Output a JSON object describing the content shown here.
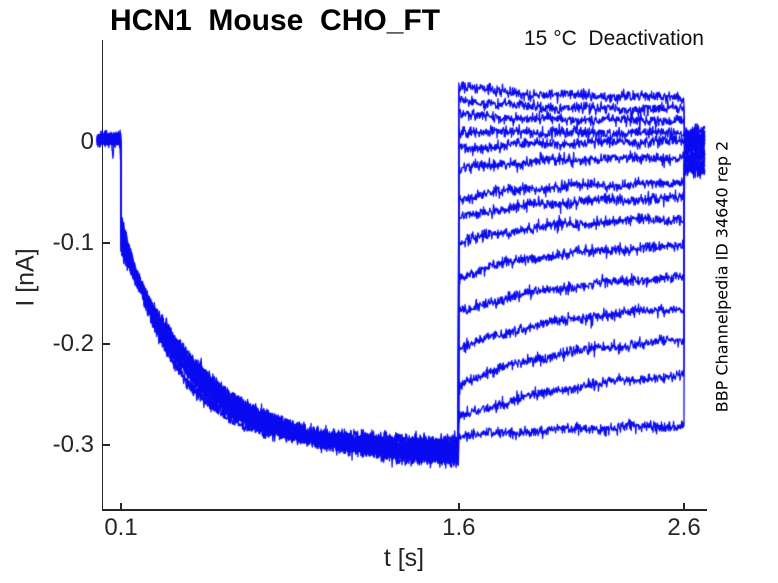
{
  "header": {
    "title": "HCN1  Mouse  CHO_FT",
    "subtitle": "15 °C  Deactivation",
    "watermark": "BBP Channelpedia ID 34640 rep 2"
  },
  "chart_data": {
    "type": "line",
    "title": "HCN1  Mouse  CHO_FT",
    "annotation": "15 °C  Deactivation",
    "side_label": "BBP Channelpedia ID 34640 rep 2",
    "xlabel": "t [s]",
    "ylabel": "I [nA]",
    "xlim": [
      -0.02,
      2.7
    ],
    "ylim": [
      -0.365,
      0.072
    ],
    "grid": false,
    "legend": "none",
    "x_ticks": [
      {
        "v": 0.1,
        "label": "0.1"
      },
      {
        "v": 1.6,
        "label": "1.6"
      },
      {
        "v": 2.6,
        "label": "2.6"
      }
    ],
    "y_ticks": [
      {
        "v": 0,
        "label": "0"
      },
      {
        "v": -0.1,
        "label": "-0.1"
      },
      {
        "v": -0.2,
        "label": "-0.2"
      },
      {
        "v": -0.3,
        "label": "-0.3"
      }
    ],
    "colors": {
      "trace": "#0b0bf0",
      "axis": "#262626",
      "text": "#000000",
      "background": "#ffffff"
    },
    "protocol": {
      "t_data_start_s": -0.006,
      "t_step_activation_s": 0.1,
      "t_step_deactivation_s": 1.6,
      "t_step_post_s": 2.6,
      "t_data_end_s": 2.692,
      "baseline_nA": 0.003
    },
    "noise_sigma_nA": {
      "baseline": 0.003,
      "activation": 0.0032,
      "tail": 0.0027,
      "post": 0.0038
    },
    "traces": [
      {
        "activation": {
          "start_nA": -0.075,
          "tau_s": 0.22,
          "steady_nA": -0.296
        },
        "tail": {
          "start_nA": 0.0566,
          "end_nA": 0.0446,
          "tau_s": 0.25
        },
        "post_nA": 0.01
      },
      {
        "activation": {
          "start_nA": -0.0773,
          "tau_s": 0.236,
          "steady_nA": -0.2979
        },
        "tail": {
          "start_nA": 0.0425,
          "end_nA": 0.0325,
          "tau_s": 0.26
        },
        "post_nA": 0.0072
      },
      {
        "activation": {
          "start_nA": -0.0796,
          "tau_s": 0.252,
          "steady_nA": -0.2998
        },
        "tail": {
          "start_nA": 0.0273,
          "end_nA": 0.0213,
          "tau_s": 0.28
        },
        "post_nA": 0.0044
      },
      {
        "activation": {
          "start_nA": -0.0819,
          "tau_s": 0.268,
          "steady_nA": -0.3017
        },
        "tail": {
          "start_nA": 0.011,
          "end_nA": 0.009,
          "tau_s": 0.3
        },
        "post_nA": 0.0016
      },
      {
        "activation": {
          "start_nA": -0.0842,
          "tau_s": 0.284,
          "steady_nA": -0.3036
        },
        "tail": {
          "start_nA": -0.0074,
          "end_nA": 0.0006,
          "tau_s": 0.32
        },
        "post_nA": -0.0012
      },
      {
        "activation": {
          "start_nA": -0.0865,
          "tau_s": 0.3,
          "steady_nA": -0.3055
        },
        "tail": {
          "start_nA": -0.0276,
          "end_nA": -0.0156,
          "tau_s": 0.3
        },
        "post_nA": -0.004
      },
      {
        "activation": {
          "start_nA": -0.0888,
          "tau_s": 0.316,
          "steady_nA": -0.3074
        },
        "tail": {
          "start_nA": -0.0568,
          "end_nA": -0.0408,
          "tau_s": 0.33
        },
        "post_nA": -0.0068
      },
      {
        "activation": {
          "start_nA": -0.0911,
          "tau_s": 0.332,
          "steady_nA": -0.3093
        },
        "tail": {
          "start_nA": -0.0745,
          "end_nA": -0.0555,
          "tau_s": 0.36
        },
        "post_nA": -0.0096
      },
      {
        "activation": {
          "start_nA": -0.0934,
          "tau_s": 0.348,
          "steady_nA": -0.3112
        },
        "tail": {
          "start_nA": -0.1002,
          "end_nA": -0.0762,
          "tau_s": 0.38
        },
        "post_nA": -0.0124
      },
      {
        "activation": {
          "start_nA": -0.0957,
          "tau_s": 0.364,
          "steady_nA": -0.3131
        },
        "tail": {
          "start_nA": -0.1335,
          "end_nA": -0.1035,
          "tau_s": 0.4
        },
        "post_nA": -0.0152
      },
      {
        "activation": {
          "start_nA": -0.098,
          "tau_s": 0.38,
          "steady_nA": -0.315
        },
        "tail": {
          "start_nA": -0.1693,
          "end_nA": -0.1343,
          "tau_s": 0.44
        },
        "post_nA": -0.018
      },
      {
        "activation": {
          "start_nA": -0.1003,
          "tau_s": 0.396,
          "steady_nA": -0.3169
        },
        "tail": {
          "start_nA": -0.205,
          "end_nA": -0.165,
          "tau_s": 0.48
        },
        "post_nA": -0.0208
      },
      {
        "activation": {
          "start_nA": -0.1026,
          "tau_s": 0.412,
          "steady_nA": -0.3188
        },
        "tail": {
          "start_nA": -0.2402,
          "end_nA": -0.1962,
          "tau_s": 0.52
        },
        "post_nA": -0.0236
      },
      {
        "activation": {
          "start_nA": -0.1049,
          "tau_s": 0.428,
          "steady_nA": -0.3207
        },
        "tail": {
          "start_nA": -0.2731,
          "end_nA": -0.2311,
          "tau_s": 0.58
        },
        "post_nA": -0.0264
      },
      {
        "activation": {
          "start_nA": -0.1072,
          "tau_s": 0.444,
          "steady_nA": -0.3226
        },
        "tail": {
          "start_nA": -0.292,
          "end_nA": -0.281,
          "tau_s": 0.65
        },
        "post_nA": -0.0292
      }
    ]
  }
}
